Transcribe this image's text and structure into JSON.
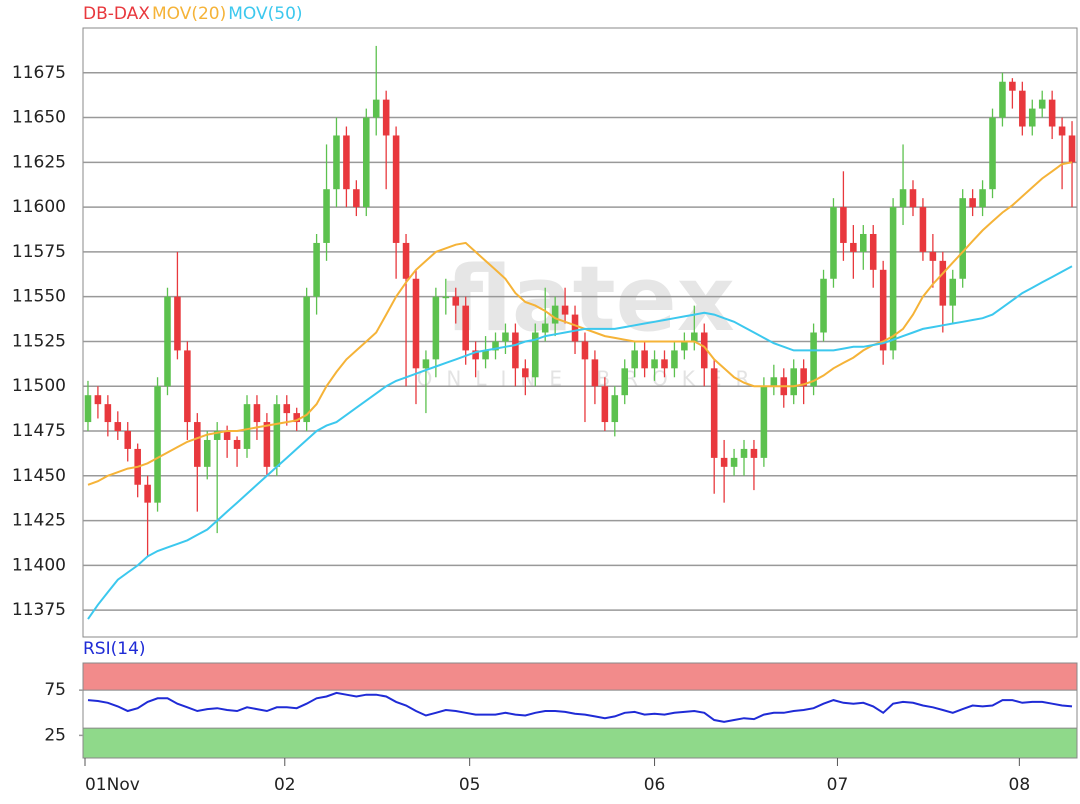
{
  "chart_data": [
    {
      "type": "candlestick",
      "watermark": "flatex",
      "watermark_sub": "ONLINE BROKER",
      "xlim": [
        -0.5,
        99.5
      ],
      "xticks": [
        {
          "value": -0.3,
          "label": "01Nov"
        },
        {
          "value": 19.8,
          "label": "02"
        },
        {
          "value": 38.4,
          "label": "05"
        },
        {
          "value": 57.0,
          "label": "06"
        },
        {
          "value": 75.4,
          "label": "07"
        },
        {
          "value": 93.7,
          "label": "08"
        }
      ],
      "ylim": [
        11360,
        11700
      ],
      "yticks": [
        11375,
        11400,
        11425,
        11450,
        11475,
        11500,
        11525,
        11550,
        11575,
        11600,
        11625,
        11650,
        11675
      ],
      "grid": true,
      "series": [
        {
          "name": "DB-DAX",
          "color": "#e8383d",
          "up_color": "#5cc14e",
          "down_color": "#e8383d",
          "open": [
            11480,
            11495,
            11490,
            11480,
            11475,
            11465,
            11445,
            11435,
            11500,
            11550,
            11520,
            11480,
            11455,
            11470,
            11475,
            11470,
            11465,
            11490,
            11480,
            11455,
            11490,
            11485,
            11480,
            11550,
            11580,
            11610,
            11640,
            11610,
            11600,
            11650,
            11660,
            11640,
            11580,
            11560,
            11510,
            11515,
            11550,
            11550,
            11545,
            11520,
            11515,
            11520,
            11525,
            11530,
            11510,
            11505,
            11530,
            11535,
            11545,
            11540,
            11525,
            11515,
            11500,
            11480,
            11495,
            11510,
            11520,
            11510,
            11515,
            11510,
            11520,
            11525,
            11530,
            11510,
            11460,
            11455,
            11460,
            11465,
            11460,
            11500,
            11505,
            11495,
            11510,
            11500,
            11530,
            11560,
            11600,
            11580,
            11575,
            11585,
            11565,
            11520,
            11600,
            11610,
            11600,
            11575,
            11570,
            11545,
            11560,
            11605,
            11600,
            11610,
            11650,
            11670,
            11665,
            11645,
            11655,
            11660,
            11645,
            11640
          ],
          "high": [
            11503,
            11500,
            11495,
            11486,
            11480,
            11468,
            11450,
            11505,
            11555,
            11575,
            11525,
            11485,
            11475,
            11480,
            11478,
            11472,
            11495,
            11495,
            11485,
            11495,
            11495,
            11488,
            11555,
            11585,
            11635,
            11650,
            11645,
            11615,
            11655,
            11690,
            11665,
            11645,
            11585,
            11565,
            11520,
            11555,
            11560,
            11555,
            11550,
            11525,
            11528,
            11530,
            11535,
            11535,
            11515,
            11535,
            11555,
            11550,
            11555,
            11545,
            11530,
            11520,
            11505,
            11500,
            11515,
            11525,
            11525,
            11520,
            11520,
            11525,
            11530,
            11545,
            11535,
            11515,
            11470,
            11465,
            11470,
            11470,
            11505,
            11512,
            11510,
            11515,
            11515,
            11535,
            11565,
            11605,
            11620,
            11590,
            11590,
            11590,
            11570,
            11605,
            11635,
            11615,
            11605,
            11585,
            11575,
            11565,
            11610,
            11610,
            11615,
            11655,
            11675,
            11672,
            11670,
            11660,
            11665,
            11665,
            11650,
            11648
          ],
          "low": [
            11475,
            11482,
            11472,
            11470,
            11458,
            11438,
            11405,
            11430,
            11495,
            11515,
            11470,
            11430,
            11448,
            11418,
            11460,
            11455,
            11460,
            11470,
            11450,
            11450,
            11478,
            11475,
            11475,
            11540,
            11570,
            11600,
            11600,
            11595,
            11595,
            11640,
            11610,
            11560,
            11500,
            11490,
            11485,
            11505,
            11540,
            11535,
            11512,
            11505,
            11510,
            11515,
            11518,
            11500,
            11495,
            11500,
            11525,
            11528,
            11535,
            11518,
            11480,
            11490,
            11475,
            11472,
            11490,
            11505,
            11505,
            11503,
            11505,
            11505,
            11515,
            11520,
            11500,
            11440,
            11435,
            11450,
            11450,
            11442,
            11455,
            11495,
            11488,
            11490,
            11490,
            11495,
            11525,
            11555,
            11570,
            11560,
            11565,
            11555,
            11512,
            11515,
            11590,
            11595,
            11570,
            11555,
            11530,
            11535,
            11555,
            11595,
            11595,
            11605,
            11645,
            11655,
            11640,
            11640,
            11650,
            11638,
            11610,
            11600
          ],
          "close": [
            11495,
            11490,
            11480,
            11475,
            11465,
            11445,
            11435,
            11500,
            11550,
            11520,
            11480,
            11455,
            11470,
            11475,
            11470,
            11465,
            11490,
            11480,
            11455,
            11490,
            11485,
            11480,
            11550,
            11580,
            11610,
            11640,
            11610,
            11600,
            11650,
            11660,
            11640,
            11580,
            11560,
            11510,
            11515,
            11550,
            11550,
            11545,
            11520,
            11515,
            11520,
            11525,
            11530,
            11510,
            11505,
            11530,
            11535,
            11545,
            11540,
            11525,
            11515,
            11500,
            11480,
            11495,
            11510,
            11520,
            11510,
            11515,
            11510,
            11520,
            11525,
            11530,
            11510,
            11460,
            11455,
            11460,
            11465,
            11460,
            11500,
            11505,
            11495,
            11510,
            11500,
            11530,
            11560,
            11600,
            11580,
            11575,
            11585,
            11565,
            11520,
            11600,
            11610,
            11600,
            11575,
            11570,
            11545,
            11560,
            11605,
            11600,
            11610,
            11650,
            11670,
            11665,
            11645,
            11655,
            11660,
            11645,
            11640,
            11625
          ]
        },
        {
          "name": "MOV(20)",
          "color": "#f5b338",
          "values": [
            11445,
            11447,
            11450,
            11452,
            11454,
            11455,
            11457,
            11460,
            11463,
            11466,
            11469,
            11471,
            11473,
            11474,
            11475,
            11475,
            11476,
            11477,
            11478,
            11479,
            11480,
            11481,
            11484,
            11490,
            11500,
            11508,
            11515,
            11520,
            11525,
            11530,
            11540,
            11550,
            11558,
            11565,
            11570,
            11575,
            11577,
            11579,
            11580,
            11575,
            11570,
            11565,
            11560,
            11552,
            11547,
            11545,
            11542,
            11538,
            11536,
            11534,
            11532,
            11530,
            11528,
            11527,
            11526,
            11525,
            11525,
            11525,
            11525,
            11525,
            11525,
            11525,
            11522,
            11515,
            11510,
            11505,
            11502,
            11500,
            11500,
            11500,
            11500,
            11500,
            11501,
            11503,
            11506,
            11510,
            11513,
            11516,
            11520,
            11523,
            11525,
            11528,
            11532,
            11540,
            11550,
            11557,
            11563,
            11569,
            11575,
            11581,
            11587,
            11592,
            11597,
            11601,
            11606,
            11611,
            11616,
            11620,
            11624,
            11625
          ]
        },
        {
          "name": "MOV(50)",
          "color": "#3cc8ee",
          "values": [
            11370,
            11378,
            11385,
            11392,
            11396,
            11400,
            11405,
            11408,
            11410,
            11412,
            11414,
            11417,
            11420,
            11425,
            11430,
            11435,
            11440,
            11445,
            11450,
            11455,
            11460,
            11465,
            11470,
            11475,
            11478,
            11480,
            11484,
            11488,
            11492,
            11496,
            11500,
            11503,
            11505,
            11507,
            11509,
            11511,
            11513,
            11515,
            11517,
            11519,
            11520,
            11521,
            11522,
            11523,
            11525,
            11526,
            11528,
            11529,
            11530,
            11531,
            11532,
            11532,
            11532,
            11532,
            11533,
            11534,
            11535,
            11536,
            11537,
            11538,
            11539,
            11540,
            11541,
            11540,
            11538,
            11536,
            11533,
            11530,
            11527,
            11524,
            11522,
            11520,
            11520,
            11520,
            11520,
            11520,
            11521,
            11522,
            11522,
            11523,
            11524,
            11526,
            11528,
            11530,
            11532,
            11533,
            11534,
            11535,
            11536,
            11537,
            11538,
            11540,
            11544,
            11548,
            11552,
            11555,
            11558,
            11561,
            11564,
            11567
          ]
        }
      ]
    },
    {
      "type": "line",
      "xlim": [
        -0.5,
        99.5
      ],
      "ylim": [
        0,
        105
      ],
      "yticks": [
        25,
        75
      ],
      "bands": [
        {
          "range": [
            75,
            105
          ],
          "color": "#f28b8b"
        },
        {
          "range": [
            0,
            33
          ],
          "color": "#8fd98a"
        }
      ],
      "series": [
        {
          "name": "RSI(14)",
          "color": "#1f2bd6",
          "values": [
            64,
            63,
            61,
            57,
            52,
            55,
            62,
            66,
            66,
            60,
            56,
            52,
            54,
            55,
            53,
            52,
            56,
            54,
            52,
            56,
            56,
            55,
            60,
            66,
            68,
            72,
            70,
            68,
            70,
            70,
            68,
            62,
            58,
            52,
            47,
            50,
            53,
            52,
            50,
            48,
            48,
            48,
            50,
            48,
            47,
            50,
            52,
            52,
            51,
            49,
            48,
            46,
            44,
            46,
            50,
            51,
            48,
            49,
            48,
            50,
            51,
            52,
            50,
            42,
            40,
            42,
            44,
            43,
            48,
            50,
            50,
            52,
            53,
            55,
            60,
            64,
            61,
            60,
            61,
            57,
            50,
            60,
            62,
            61,
            58,
            56,
            53,
            50,
            54,
            58,
            57,
            58,
            64,
            64,
            61,
            62,
            62,
            60,
            58,
            57
          ]
        }
      ]
    }
  ]
}
